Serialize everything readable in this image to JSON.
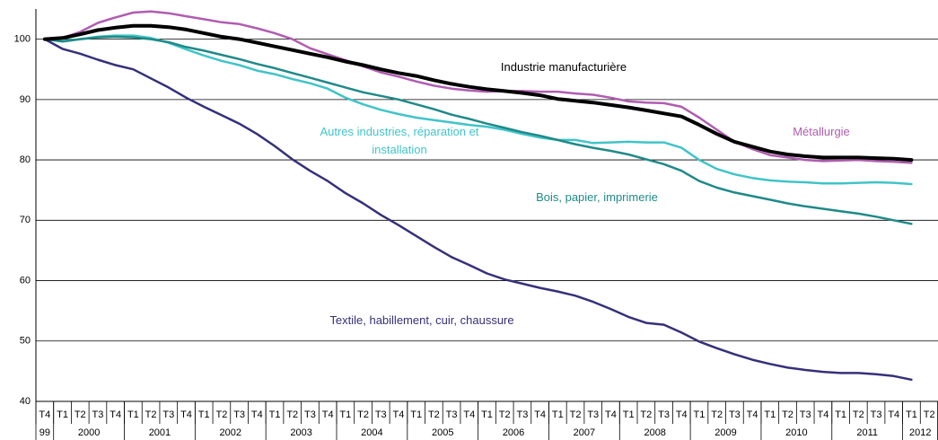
{
  "chart_data": {
    "type": "line",
    "categories": [
      "T4",
      "T1",
      "T2",
      "T3",
      "T4",
      "T1",
      "T2",
      "T3",
      "T4",
      "T1",
      "T2",
      "T3",
      "T4",
      "T1",
      "T2",
      "T3",
      "T4",
      "T1",
      "T2",
      "T3",
      "T4",
      "T1",
      "T2",
      "T3",
      "T4",
      "T1",
      "T2",
      "T3",
      "T4",
      "T1",
      "T2",
      "T3",
      "T4",
      "T1",
      "T2",
      "T3",
      "T4",
      "T1",
      "T2",
      "T3",
      "T4",
      "T1",
      "T2",
      "T3",
      "T4",
      "T1",
      "T2",
      "T3",
      "T4",
      "T1",
      "T2"
    ],
    "year_groups": [
      {
        "label": "99",
        "count": 1
      },
      {
        "label": "2000",
        "count": 4
      },
      {
        "label": "2001",
        "count": 4
      },
      {
        "label": "2002",
        "count": 4
      },
      {
        "label": "2003",
        "count": 4
      },
      {
        "label": "2004",
        "count": 4
      },
      {
        "label": "2005",
        "count": 4
      },
      {
        "label": "2006",
        "count": 4
      },
      {
        "label": "2007",
        "count": 4
      },
      {
        "label": "2008",
        "count": 4
      },
      {
        "label": "2009",
        "count": 4
      },
      {
        "label": "2010",
        "count": 4
      },
      {
        "label": "2011",
        "count": 4
      },
      {
        "label": "2012",
        "count": 2
      }
    ],
    "ylim": [
      40,
      105
    ],
    "yticks": [
      40,
      50,
      60,
      70,
      80,
      90,
      100
    ],
    "grid": true,
    "series": [
      {
        "name": "Métallurgie",
        "color": "#b05cb0",
        "values": [
          100,
          100.2,
          101.2,
          102.7,
          103.6,
          104.4,
          104.6,
          104.3,
          103.8,
          103.3,
          102.8,
          102.5,
          101.8,
          101,
          100,
          98.5,
          97.5,
          96.5,
          95.5,
          94.5,
          93.8,
          93,
          92.3,
          91.8,
          91.5,
          91.3,
          91.4,
          91.4,
          91.3,
          91.3,
          91,
          90.8,
          90.3,
          89.7,
          89.5,
          89.4,
          88.8,
          87,
          85,
          83,
          81.8,
          80.8,
          80.4,
          80,
          79.8,
          79.9,
          80,
          79.8,
          79.7,
          79.5,
          null
        ]
      },
      {
        "name": "Autres industries, réparation et installation",
        "color": "#40c4c8",
        "values": [
          100,
          99.7,
          100,
          100.4,
          100.6,
          100.6,
          100.2,
          99.4,
          98.3,
          97.3,
          96.4,
          95.7,
          94.8,
          94.2,
          93.4,
          92.7,
          91.8,
          90.3,
          89.2,
          88.3,
          87.6,
          87,
          86.6,
          86.2,
          85.8,
          85.5,
          85,
          84.3,
          83.7,
          83.3,
          83.3,
          82.8,
          82.9,
          83,
          82.9,
          82.9,
          82,
          80,
          78.5,
          77.6,
          77,
          76.6,
          76.4,
          76.3,
          76.1,
          76.1,
          76.2,
          76.3,
          76.2,
          76.0,
          null
        ]
      },
      {
        "name": "Bois, papier, imprimerie",
        "color": "#1f8a88",
        "values": [
          100,
          99.6,
          100,
          100.3,
          100.4,
          100.3,
          100,
          99.5,
          98.7,
          98.1,
          97.4,
          96.7,
          95.9,
          95.2,
          94.4,
          93.6,
          92.8,
          92,
          91.2,
          90.6,
          90,
          89.2,
          88.4,
          87.5,
          86.8,
          86,
          85.3,
          84.6,
          84,
          83.3,
          82.6,
          82,
          81.5,
          80.9,
          80.1,
          79.3,
          78.2,
          76.5,
          75.4,
          74.6,
          74,
          73.4,
          72.8,
          72.3,
          71.9,
          71.5,
          71.1,
          70.6,
          70,
          69.4,
          null
        ]
      },
      {
        "name": "Textile, habillement, cuir, chaussure",
        "color": "#35307a",
        "values": [
          100,
          98.4,
          97.6,
          96.6,
          95.7,
          95,
          93.5,
          92,
          90.3,
          88.8,
          87.4,
          86,
          84.3,
          82.3,
          80.1,
          78.2,
          76.5,
          74.5,
          72.8,
          70.9,
          69.2,
          67.4,
          65.6,
          63.9,
          62.6,
          61.2,
          60.2,
          59.5,
          58.8,
          58.2,
          57.5,
          56.5,
          55.3,
          54,
          53,
          52.7,
          51.4,
          49.9,
          48.8,
          47.8,
          46.9,
          46.2,
          45.6,
          45.2,
          44.9,
          44.7,
          44.7,
          44.5,
          44.2,
          43.6,
          null
        ]
      },
      {
        "name": "Industrie manufacturière",
        "color": "#000000",
        "values": [
          100,
          100.2,
          100.8,
          101.5,
          101.9,
          102.2,
          102.2,
          102,
          101.6,
          101,
          100.4,
          100,
          99.4,
          98.8,
          98.2,
          97.6,
          97,
          96.3,
          95.7,
          95,
          94.4,
          93.9,
          93.2,
          92.6,
          92.1,
          91.7,
          91.4,
          91.1,
          90.7,
          90.1,
          89.8,
          89.5,
          89.1,
          88.7,
          88.2,
          87.7,
          87.2,
          85.8,
          84.3,
          83,
          82.2,
          81.4,
          80.9,
          80.6,
          80.4,
          80.4,
          80.4,
          80.3,
          80.2,
          80.0,
          null
        ]
      }
    ]
  }
}
